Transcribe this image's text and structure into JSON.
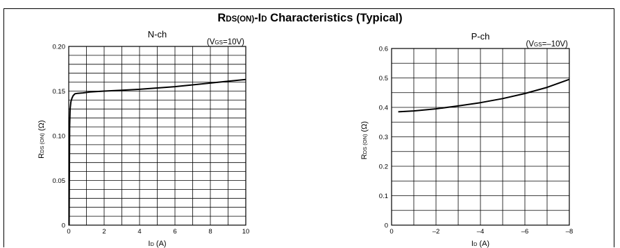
{
  "title": {
    "r": "R",
    "r_sub": "DS(ON)",
    "dash": "-I",
    "i_sub": "D",
    "rest": " Characteristics (Typical)"
  },
  "chart_data": [
    {
      "type": "line",
      "title": "N-ch",
      "condition": {
        "v": "(V",
        "sub": "GS",
        "val": "=10V)"
      },
      "ylabel": {
        "r": "R",
        "sub": "DS (ON)",
        "unit": " (Ω)"
      },
      "xlabel": {
        "i": "I",
        "sub": "D",
        "unit": " (A)"
      },
      "xlim": [
        0,
        10
      ],
      "ylim": [
        0,
        0.2
      ],
      "x_ticks": [
        "0",
        "2",
        "4",
        "6",
        "8",
        "10"
      ],
      "y_ticks": [
        "0",
        "0.05",
        "0.10",
        "0.15",
        "0.20"
      ],
      "grid_x": 10,
      "grid_y": 20,
      "series": [
        {
          "x": [
            0.02,
            0.05,
            0.08,
            0.12,
            0.18,
            0.25,
            0.35,
            0.5,
            0.8,
            1.2,
            2,
            3,
            4,
            5,
            6,
            7,
            8,
            9,
            10
          ],
          "y": [
            0.0,
            0.11,
            0.13,
            0.138,
            0.142,
            0.145,
            0.147,
            0.1475,
            0.148,
            0.149,
            0.15,
            0.151,
            0.152,
            0.1535,
            0.155,
            0.157,
            0.159,
            0.161,
            0.163
          ]
        }
      ]
    },
    {
      "type": "line",
      "title": "P-ch",
      "condition": {
        "v": "(V",
        "sub": "GS",
        "val": "=–10V)"
      },
      "ylabel": {
        "r": "R",
        "sub": "DS (ON)",
        "unit": " (Ω)"
      },
      "xlabel": {
        "i": "I",
        "sub": "D",
        "unit": " (A)"
      },
      "xlim": [
        0,
        -8
      ],
      "ylim": [
        0,
        0.6
      ],
      "x_ticks": [
        "0",
        "–2",
        "–4",
        "–6",
        "–8"
      ],
      "y_ticks": [
        "0",
        "0.1",
        "0.2",
        "0.3",
        "0.4",
        "0.5",
        "0.6"
      ],
      "grid_x": 8,
      "grid_y": 12,
      "series": [
        {
          "x": [
            -0.3,
            -1,
            -2,
            -3,
            -4,
            -5,
            -6,
            -7,
            -8
          ],
          "y": [
            0.385,
            0.388,
            0.395,
            0.405,
            0.416,
            0.43,
            0.447,
            0.468,
            0.495
          ]
        }
      ]
    }
  ]
}
